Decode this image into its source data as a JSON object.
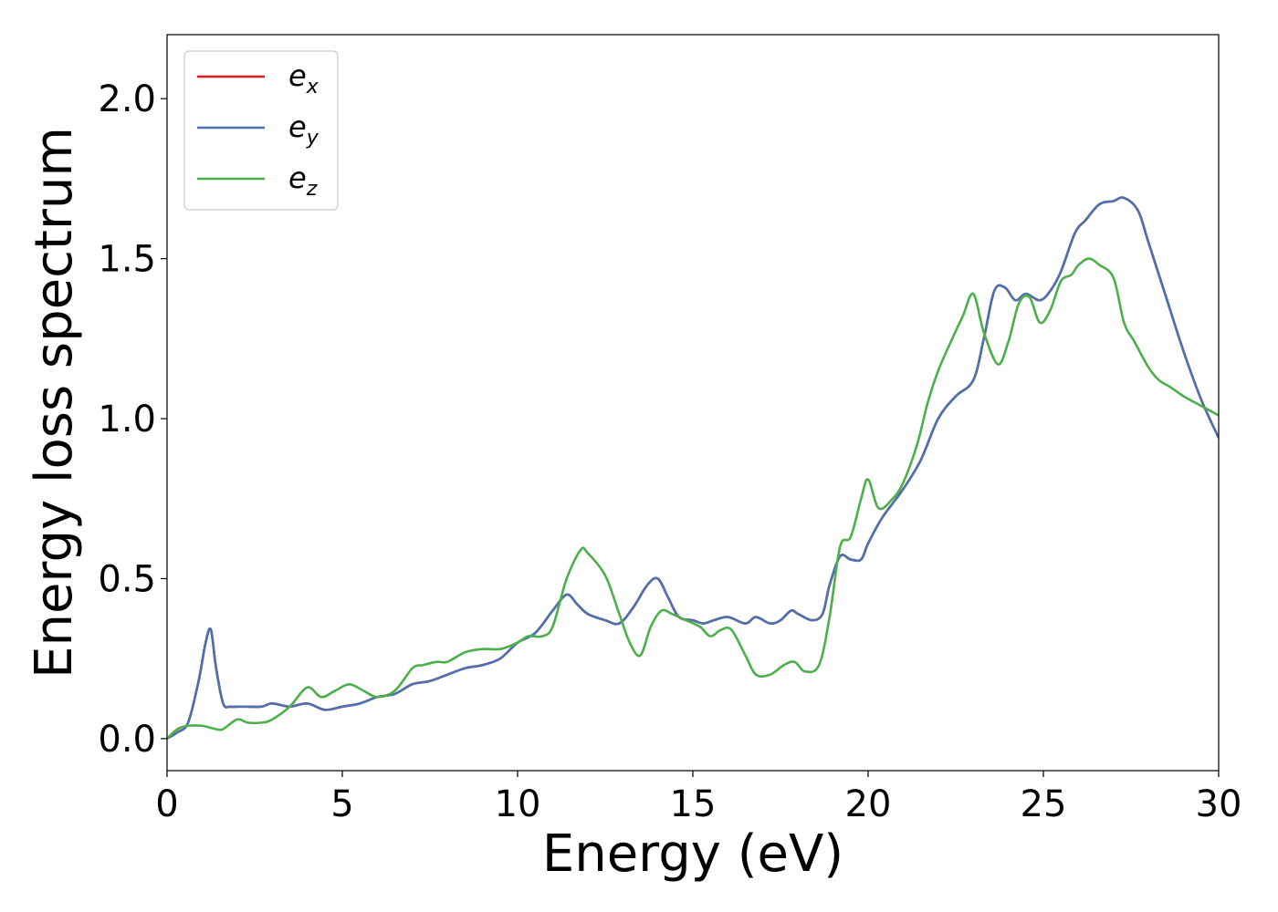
{
  "chart_data": {
    "type": "line",
    "xlabel": "Energy (eV)",
    "ylabel": "Energy loss spectrum",
    "xlim": [
      0,
      30
    ],
    "ylim": [
      -0.1,
      2.2
    ],
    "xticks": [
      0,
      5,
      10,
      15,
      20,
      25,
      30
    ],
    "xtick_labels": [
      "0",
      "5",
      "10",
      "15",
      "20",
      "25",
      "30"
    ],
    "yticks": [
      0.0,
      0.5,
      1.0,
      1.5,
      2.0
    ],
    "ytick_labels": [
      "0.0",
      "0.5",
      "1.0",
      "1.5",
      "2.0"
    ],
    "grid": false,
    "legend_position": "top-left",
    "series": [
      {
        "name": "e_x",
        "legend_main": "e",
        "legend_sub": "x",
        "color": "#e41a1c",
        "x": [
          0,
          0.3,
          0.6,
          0.9,
          1.1,
          1.25,
          1.4,
          1.6,
          1.8,
          2.0,
          2.3,
          2.7,
          3.0,
          3.5,
          4.0,
          4.5,
          5.0,
          5.5,
          6.0,
          6.5,
          7.0,
          7.5,
          8.0,
          8.5,
          9.0,
          9.5,
          10.0,
          10.5,
          11.0,
          11.4,
          11.7,
          12.0,
          12.5,
          12.9,
          13.3,
          13.7,
          14.0,
          14.3,
          14.6,
          15.0,
          15.3,
          15.6,
          16.0,
          16.5,
          16.8,
          17.2,
          17.5,
          17.8,
          18.0,
          18.4,
          18.7,
          18.9,
          19.2,
          19.5,
          19.8,
          20.0,
          20.4,
          21.0,
          21.5,
          22.0,
          22.5,
          23.0,
          23.3,
          23.6,
          23.9,
          24.2,
          24.5,
          24.9,
          25.2,
          25.5,
          25.9,
          26.2,
          26.6,
          27.0,
          27.3,
          27.7,
          28.0,
          28.5,
          29.0,
          29.5,
          30.0
        ],
        "values": [
          0.0,
          0.02,
          0.05,
          0.18,
          0.3,
          0.34,
          0.22,
          0.11,
          0.1,
          0.1,
          0.1,
          0.1,
          0.11,
          0.1,
          0.11,
          0.09,
          0.1,
          0.11,
          0.13,
          0.14,
          0.17,
          0.18,
          0.2,
          0.22,
          0.23,
          0.25,
          0.3,
          0.33,
          0.4,
          0.45,
          0.42,
          0.39,
          0.37,
          0.36,
          0.41,
          0.48,
          0.5,
          0.44,
          0.38,
          0.37,
          0.36,
          0.37,
          0.38,
          0.36,
          0.38,
          0.36,
          0.37,
          0.4,
          0.39,
          0.37,
          0.39,
          0.48,
          0.57,
          0.56,
          0.56,
          0.61,
          0.69,
          0.78,
          0.87,
          1.0,
          1.07,
          1.12,
          1.25,
          1.4,
          1.41,
          1.37,
          1.39,
          1.37,
          1.4,
          1.46,
          1.58,
          1.62,
          1.67,
          1.68,
          1.69,
          1.65,
          1.55,
          1.38,
          1.21,
          1.06,
          0.94
        ]
      },
      {
        "name": "e_y",
        "legend_main": "e",
        "legend_sub": "y",
        "color": "#4a72b0",
        "x": [
          0,
          0.3,
          0.6,
          0.9,
          1.1,
          1.25,
          1.4,
          1.6,
          1.8,
          2.0,
          2.3,
          2.7,
          3.0,
          3.5,
          4.0,
          4.5,
          5.0,
          5.5,
          6.0,
          6.5,
          7.0,
          7.5,
          8.0,
          8.5,
          9.0,
          9.5,
          10.0,
          10.5,
          11.0,
          11.4,
          11.7,
          12.0,
          12.5,
          12.9,
          13.3,
          13.7,
          14.0,
          14.3,
          14.6,
          15.0,
          15.3,
          15.6,
          16.0,
          16.5,
          16.8,
          17.2,
          17.5,
          17.8,
          18.0,
          18.4,
          18.7,
          18.9,
          19.2,
          19.5,
          19.8,
          20.0,
          20.4,
          21.0,
          21.5,
          22.0,
          22.5,
          23.0,
          23.3,
          23.6,
          23.9,
          24.2,
          24.5,
          24.9,
          25.2,
          25.5,
          25.9,
          26.2,
          26.6,
          27.0,
          27.3,
          27.7,
          28.0,
          28.5,
          29.0,
          29.5,
          30.0
        ],
        "values": [
          0.0,
          0.02,
          0.05,
          0.18,
          0.3,
          0.34,
          0.22,
          0.11,
          0.1,
          0.1,
          0.1,
          0.1,
          0.11,
          0.1,
          0.11,
          0.09,
          0.1,
          0.11,
          0.13,
          0.14,
          0.17,
          0.18,
          0.2,
          0.22,
          0.23,
          0.25,
          0.3,
          0.33,
          0.4,
          0.45,
          0.42,
          0.39,
          0.37,
          0.36,
          0.41,
          0.48,
          0.5,
          0.44,
          0.38,
          0.37,
          0.36,
          0.37,
          0.38,
          0.36,
          0.38,
          0.36,
          0.37,
          0.4,
          0.39,
          0.37,
          0.39,
          0.48,
          0.57,
          0.56,
          0.56,
          0.61,
          0.69,
          0.78,
          0.87,
          1.0,
          1.07,
          1.12,
          1.25,
          1.4,
          1.41,
          1.37,
          1.39,
          1.37,
          1.4,
          1.46,
          1.58,
          1.62,
          1.67,
          1.68,
          1.69,
          1.65,
          1.55,
          1.38,
          1.21,
          1.06,
          0.94
        ]
      },
      {
        "name": "e_z",
        "legend_main": "e",
        "legend_sub": "z",
        "color": "#4daf4a",
        "x": [
          0,
          0.3,
          0.6,
          1.0,
          1.4,
          1.6,
          2.0,
          2.3,
          2.7,
          3.0,
          3.5,
          4.0,
          4.4,
          4.8,
          5.2,
          5.6,
          6.0,
          6.5,
          7.0,
          7.3,
          7.7,
          8.0,
          8.5,
          9.0,
          9.5,
          10.0,
          10.3,
          10.7,
          11.0,
          11.4,
          11.8,
          12.0,
          12.5,
          12.9,
          13.2,
          13.5,
          13.8,
          14.1,
          14.4,
          14.8,
          15.2,
          15.5,
          15.8,
          16.1,
          16.5,
          16.8,
          17.2,
          17.6,
          17.9,
          18.2,
          18.6,
          18.9,
          19.2,
          19.5,
          19.8,
          20.0,
          20.3,
          20.7,
          21.0,
          21.4,
          21.7,
          22.0,
          22.4,
          22.7,
          23.0,
          23.3,
          23.7,
          24.0,
          24.3,
          24.6,
          24.9,
          25.2,
          25.5,
          25.8,
          26.0,
          26.3,
          26.6,
          27.0,
          27.3,
          27.6,
          28.0,
          28.3,
          28.6,
          29.0,
          29.5,
          30.0
        ],
        "values": [
          0.0,
          0.03,
          0.04,
          0.04,
          0.03,
          0.03,
          0.06,
          0.05,
          0.05,
          0.06,
          0.1,
          0.16,
          0.13,
          0.15,
          0.17,
          0.15,
          0.13,
          0.15,
          0.22,
          0.23,
          0.24,
          0.24,
          0.27,
          0.28,
          0.28,
          0.3,
          0.32,
          0.32,
          0.35,
          0.5,
          0.59,
          0.58,
          0.51,
          0.39,
          0.3,
          0.26,
          0.35,
          0.4,
          0.39,
          0.37,
          0.35,
          0.32,
          0.34,
          0.34,
          0.26,
          0.2,
          0.2,
          0.23,
          0.24,
          0.21,
          0.23,
          0.38,
          0.6,
          0.63,
          0.75,
          0.81,
          0.72,
          0.75,
          0.8,
          0.92,
          1.05,
          1.15,
          1.25,
          1.32,
          1.39,
          1.27,
          1.17,
          1.24,
          1.36,
          1.38,
          1.3,
          1.34,
          1.43,
          1.45,
          1.48,
          1.5,
          1.48,
          1.44,
          1.3,
          1.24,
          1.16,
          1.12,
          1.1,
          1.07,
          1.04,
          1.01
        ]
      }
    ]
  }
}
